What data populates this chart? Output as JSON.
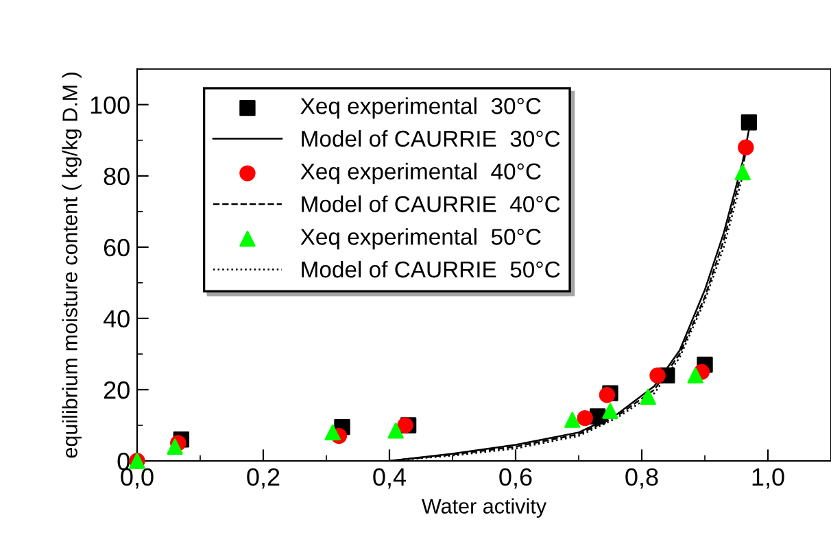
{
  "chart_data": {
    "type": "scatter",
    "xlabel": "Water activity",
    "ylabel": "equilibrium moisture content ( kg/kg D.M )",
    "xlim": [
      0,
      1.1
    ],
    "ylim": [
      0,
      110
    ],
    "xticks": [
      {
        "value": 0,
        "label": "0,0"
      },
      {
        "value": 0.2,
        "label": "0,2"
      },
      {
        "value": 0.4,
        "label": "0,4"
      },
      {
        "value": 0.6,
        "label": "0,6"
      },
      {
        "value": 0.8,
        "label": "0,8"
      },
      {
        "value": 1.0,
        "label": "1,0"
      }
    ],
    "yticks": [
      0,
      20,
      40,
      60,
      80,
      100
    ],
    "grid": false,
    "legend": "top left",
    "series": [
      {
        "name": "Xeq experimental  30°C",
        "marker": "square",
        "color": "#000000",
        "x": [
          0.07,
          0.325,
          0.43,
          0.73,
          0.75,
          0.84,
          0.9,
          0.97
        ],
        "values": [
          6,
          9.5,
          10,
          12.5,
          19,
          24,
          27,
          95
        ]
      },
      {
        "name": "Model of CAURRIE  30°C",
        "type": "line",
        "line_style": "solid",
        "color": "#000000",
        "x": [
          0.4,
          0.5,
          0.6,
          0.7,
          0.76,
          0.82,
          0.86,
          0.9,
          0.93,
          0.96,
          0.97
        ],
        "values": [
          0,
          2,
          4.5,
          8,
          13,
          21,
          31,
          48,
          64,
          84,
          93
        ]
      },
      {
        "name": "Xeq experimental  40°C",
        "marker": "circle",
        "color": "#ff0000",
        "x": [
          0,
          0.065,
          0.32,
          0.425,
          0.71,
          0.745,
          0.825,
          0.895,
          0.965
        ],
        "values": [
          0,
          5,
          7,
          10,
          12,
          18.5,
          24,
          25,
          88
        ]
      },
      {
        "name": "Model of CAURRIE  40°C",
        "type": "line",
        "line_style": "dashed",
        "color": "#000000",
        "x": [
          0.4,
          0.5,
          0.6,
          0.7,
          0.76,
          0.82,
          0.86,
          0.9,
          0.93,
          0.96,
          0.965
        ],
        "values": [
          0,
          1.8,
          4,
          7.5,
          12.5,
          20,
          30,
          46,
          62,
          82,
          87
        ]
      },
      {
        "name": "Xeq experimental  50°C",
        "marker": "triangle",
        "color": "#00ff00",
        "x": [
          0,
          0.06,
          0.31,
          0.41,
          0.69,
          0.75,
          0.81,
          0.885,
          0.96
        ],
        "values": [
          0,
          4,
          8,
          8.5,
          11.5,
          14,
          18,
          24,
          81
        ]
      },
      {
        "name": "Model of CAURRIE  50°C",
        "type": "line",
        "line_style": "dotted",
        "color": "#000000",
        "x": [
          0.4,
          0.5,
          0.6,
          0.7,
          0.76,
          0.82,
          0.86,
          0.9,
          0.93,
          0.96
        ],
        "values": [
          0,
          1.5,
          3.5,
          7,
          12,
          19,
          29,
          45,
          60,
          80
        ]
      }
    ]
  }
}
